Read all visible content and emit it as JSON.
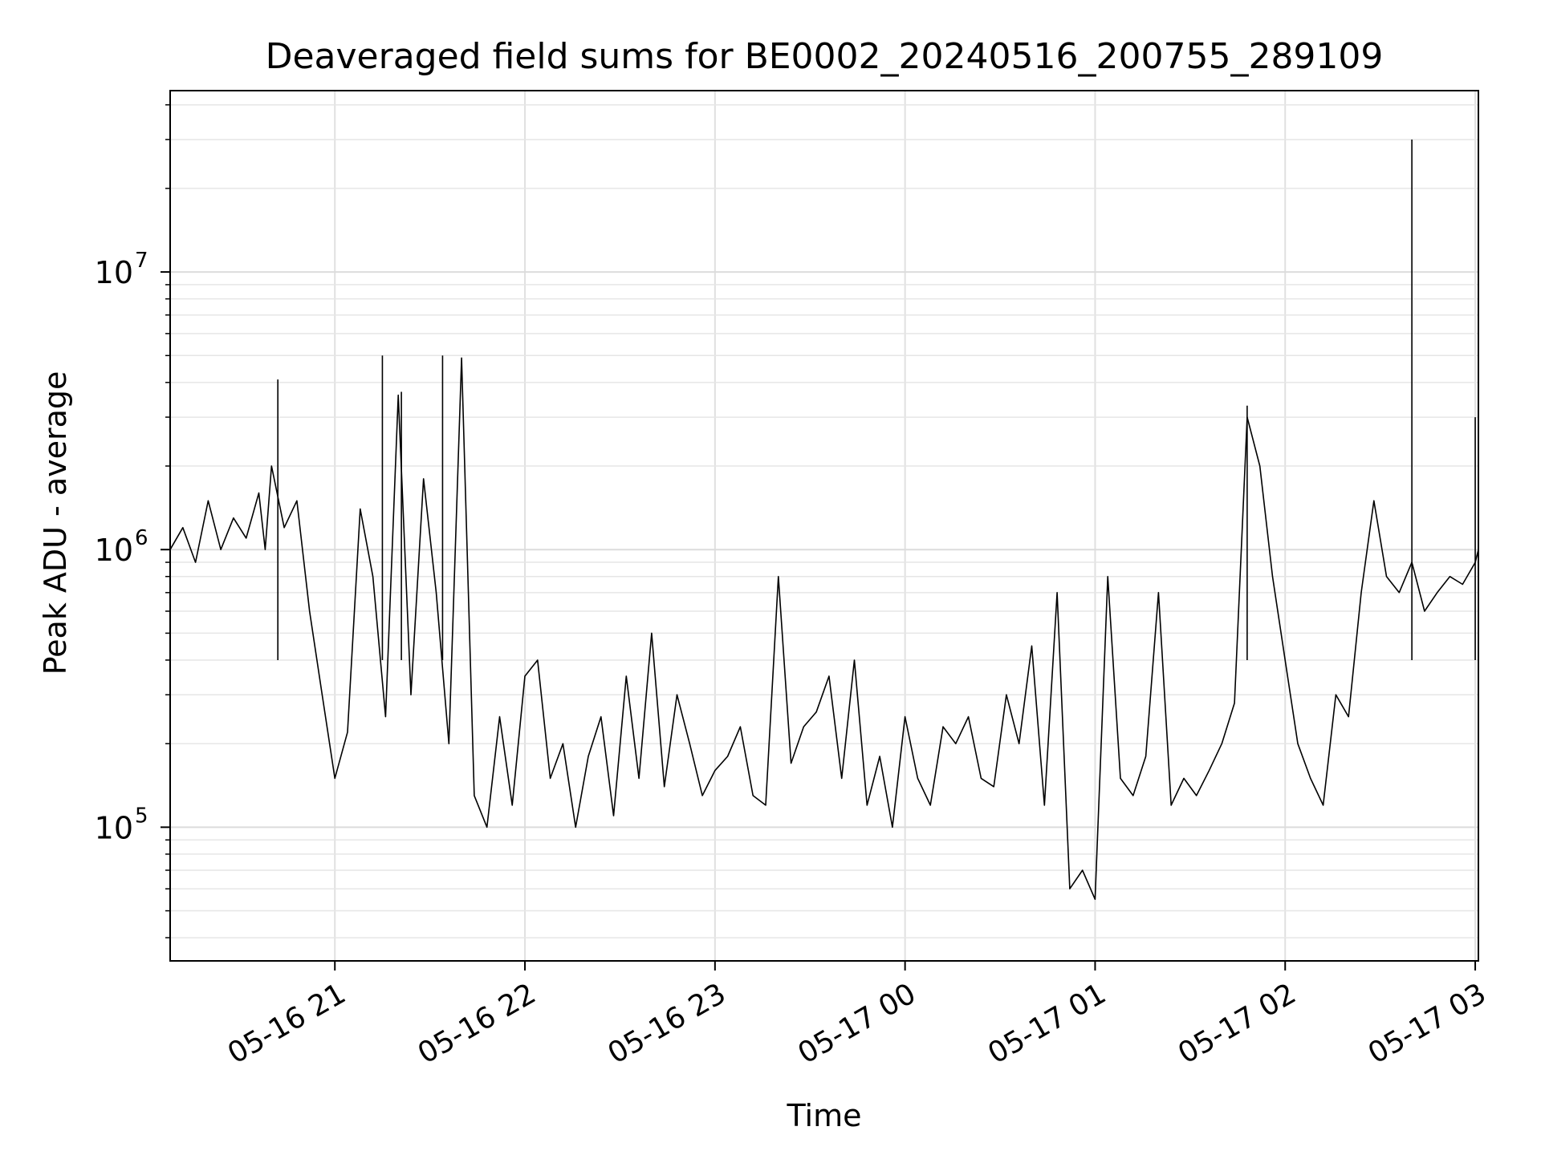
{
  "chart_data": {
    "type": "line",
    "title": "Deaveraged field sums for BE0002_20240516_200755_289109",
    "xlabel": "Time",
    "ylabel": "Peak ADU - average",
    "x_axis": {
      "type": "datetime",
      "range": [
        "2024-05-16 20:08:00",
        "2024-05-17 03:01:00"
      ],
      "ticks": [
        {
          "value": "2024-05-16 21:00",
          "label": "05-16 21"
        },
        {
          "value": "2024-05-16 22:00",
          "label": "05-16 22"
        },
        {
          "value": "2024-05-16 23:00",
          "label": "05-16 23"
        },
        {
          "value": "2024-05-17 00:00",
          "label": "05-17 00"
        },
        {
          "value": "2024-05-17 01:00",
          "label": "05-17 01"
        },
        {
          "value": "2024-05-17 02:00",
          "label": "05-17 02"
        },
        {
          "value": "2024-05-17 03:00",
          "label": "05-17 03"
        }
      ]
    },
    "y_axis": {
      "scale": "log",
      "range": [
        33000,
        45000000
      ],
      "ticks": [
        {
          "value": 100000,
          "base": "10",
          "exp": "5"
        },
        {
          "value": 1000000,
          "base": "10",
          "exp": "6"
        },
        {
          "value": 10000000,
          "base": "10",
          "exp": "7"
        }
      ]
    },
    "grid": true,
    "series": [
      {
        "color": "#000000",
        "x": [
          "2024-05-16 20:08",
          "2024-05-16 20:12",
          "2024-05-16 20:16",
          "2024-05-16 20:20",
          "2024-05-16 20:24",
          "2024-05-16 20:28",
          "2024-05-16 20:32",
          "2024-05-16 20:36",
          "2024-05-16 20:38",
          "2024-05-16 20:40",
          "2024-05-16 20:44",
          "2024-05-16 20:48",
          "2024-05-16 20:52",
          "2024-05-16 20:56",
          "2024-05-16 21:00",
          "2024-05-16 21:04",
          "2024-05-16 21:08",
          "2024-05-16 21:12",
          "2024-05-16 21:16",
          "2024-05-16 21:20",
          "2024-05-16 21:24",
          "2024-05-16 21:28",
          "2024-05-16 21:32",
          "2024-05-16 21:36",
          "2024-05-16 21:40",
          "2024-05-16 21:44",
          "2024-05-16 21:48",
          "2024-05-16 21:52",
          "2024-05-16 21:56",
          "2024-05-16 22:00",
          "2024-05-16 22:04",
          "2024-05-16 22:08",
          "2024-05-16 22:12",
          "2024-05-16 22:16",
          "2024-05-16 22:20",
          "2024-05-16 22:24",
          "2024-05-16 22:28",
          "2024-05-16 22:32",
          "2024-05-16 22:36",
          "2024-05-16 22:40",
          "2024-05-16 22:44",
          "2024-05-16 22:48",
          "2024-05-16 22:52",
          "2024-05-16 22:56",
          "2024-05-16 23:00",
          "2024-05-16 23:04",
          "2024-05-16 23:08",
          "2024-05-16 23:12",
          "2024-05-16 23:16",
          "2024-05-16 23:20",
          "2024-05-16 23:24",
          "2024-05-16 23:28",
          "2024-05-16 23:32",
          "2024-05-16 23:36",
          "2024-05-16 23:40",
          "2024-05-16 23:44",
          "2024-05-16 23:48",
          "2024-05-16 23:52",
          "2024-05-16 23:56",
          "2024-05-17 00:00",
          "2024-05-17 00:04",
          "2024-05-17 00:08",
          "2024-05-17 00:12",
          "2024-05-17 00:16",
          "2024-05-17 00:20",
          "2024-05-17 00:24",
          "2024-05-17 00:28",
          "2024-05-17 00:32",
          "2024-05-17 00:36",
          "2024-05-17 00:40",
          "2024-05-17 00:44",
          "2024-05-17 00:48",
          "2024-05-17 00:52",
          "2024-05-17 00:56",
          "2024-05-17 01:00",
          "2024-05-17 01:04",
          "2024-05-17 01:08",
          "2024-05-17 01:12",
          "2024-05-17 01:16",
          "2024-05-17 01:20",
          "2024-05-17 01:24",
          "2024-05-17 01:28",
          "2024-05-17 01:32",
          "2024-05-17 01:36",
          "2024-05-17 01:40",
          "2024-05-17 01:44",
          "2024-05-17 01:48",
          "2024-05-17 01:52",
          "2024-05-17 01:56",
          "2024-05-17 02:00",
          "2024-05-17 02:04",
          "2024-05-17 02:08",
          "2024-05-17 02:12",
          "2024-05-17 02:16",
          "2024-05-17 02:20",
          "2024-05-17 02:24",
          "2024-05-17 02:28",
          "2024-05-17 02:32",
          "2024-05-17 02:36",
          "2024-05-17 02:40",
          "2024-05-17 02:44",
          "2024-05-17 02:48",
          "2024-05-17 02:52",
          "2024-05-17 02:56",
          "2024-05-17 03:00",
          "2024-05-17 03:01"
        ],
        "y": [
          1000000,
          1200000,
          900000,
          1500000,
          1000000,
          1300000,
          1100000,
          1600000,
          1000000,
          2000000,
          1200000,
          1500000,
          600000,
          300000,
          150000,
          220000,
          1400000,
          800000,
          250000,
          3600000,
          300000,
          1800000,
          700000,
          200000,
          4900000,
          130000,
          100000,
          250000,
          120000,
          350000,
          400000,
          150000,
          200000,
          100000,
          180000,
          250000,
          110000,
          350000,
          150000,
          500000,
          140000,
          300000,
          200000,
          130000,
          160000,
          180000,
          230000,
          130000,
          120000,
          800000,
          170000,
          230000,
          260000,
          350000,
          150000,
          400000,
          120000,
          180000,
          100000,
          250000,
          150000,
          120000,
          230000,
          200000,
          250000,
          150000,
          140000,
          300000,
          200000,
          450000,
          120000,
          700000,
          60000,
          70000,
          55000,
          800000,
          150000,
          130000,
          180000,
          700000,
          120000,
          150000,
          130000,
          160000,
          200000,
          280000,
          3000000,
          2000000,
          800000,
          400000,
          200000,
          150000,
          120000,
          300000,
          250000,
          700000,
          1500000,
          800000,
          700000,
          900000,
          600000,
          700000,
          800000,
          750000,
          900000,
          1000000
        ],
        "spikes": [
          {
            "x": "2024-05-16 21:15",
            "y": 5000000
          },
          {
            "x": "2024-05-16 21:34",
            "y": 5000000
          },
          {
            "x": "2024-05-16 20:42",
            "y": 4100000
          },
          {
            "x": "2024-05-16 21:21",
            "y": 3700000
          },
          {
            "x": "2024-05-17 01:48",
            "y": 3300000
          },
          {
            "x": "2024-05-17 02:40",
            "y": 30000000
          },
          {
            "x": "2024-05-17 03:00",
            "y": 3000000
          }
        ]
      }
    ]
  }
}
